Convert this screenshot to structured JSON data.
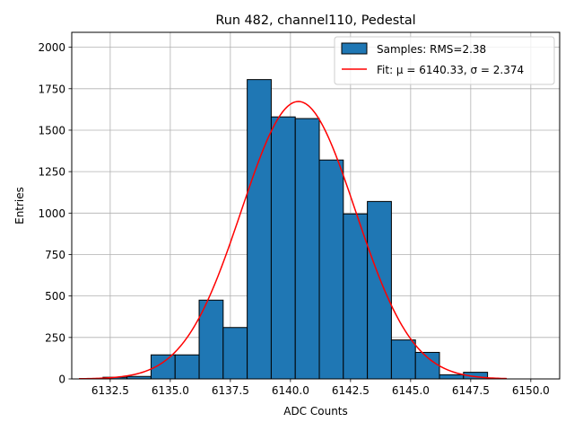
{
  "chart_data": {
    "type": "bar",
    "title": "Run 482, channel110, Pedestal",
    "xlabel": "ADC Counts",
    "ylabel": "Entries",
    "xlim": [
      6130.9,
      6151.2
    ],
    "ylim": [
      0,
      2090
    ],
    "xticks": [
      6132.5,
      6135.0,
      6137.5,
      6140.0,
      6142.5,
      6145.0,
      6147.5,
      6150.0
    ],
    "xtick_labels": [
      "6132.5",
      "6135.0",
      "6137.5",
      "6140.0",
      "6142.5",
      "6145.0",
      "6147.5",
      "6150.0"
    ],
    "yticks": [
      0,
      250,
      500,
      750,
      1000,
      1250,
      1500,
      1750,
      2000
    ],
    "ytick_labels": [
      "0",
      "250",
      "500",
      "750",
      "1000",
      "1250",
      "1500",
      "1750",
      "2000"
    ],
    "grid": true,
    "legend_position": "top-right",
    "histogram": {
      "name": "Samples: RMS=2.38",
      "color": "#1f77b4",
      "edge_color": "#000000",
      "bins": [
        {
          "x0": 6132.2,
          "x1": 6133.2,
          "count": 10
        },
        {
          "x0": 6133.2,
          "x1": 6134.2,
          "count": 15
        },
        {
          "x0": 6134.2,
          "x1": 6135.2,
          "count": 145
        },
        {
          "x0": 6135.2,
          "x1": 6136.2,
          "count": 145
        },
        {
          "x0": 6136.2,
          "x1": 6137.2,
          "count": 475
        },
        {
          "x0": 6137.2,
          "x1": 6138.2,
          "count": 310
        },
        {
          "x0": 6138.2,
          "x1": 6139.2,
          "count": 1805
        },
        {
          "x0": 6139.2,
          "x1": 6140.2,
          "count": 1580
        },
        {
          "x0": 6140.2,
          "x1": 6141.2,
          "count": 1570
        },
        {
          "x0": 6141.2,
          "x1": 6142.2,
          "count": 1320
        },
        {
          "x0": 6142.2,
          "x1": 6143.2,
          "count": 995
        },
        {
          "x0": 6143.2,
          "x1": 6144.2,
          "count": 1070
        },
        {
          "x0": 6144.2,
          "x1": 6145.2,
          "count": 235
        },
        {
          "x0": 6145.2,
          "x1": 6146.2,
          "count": 160
        },
        {
          "x0": 6146.2,
          "x1": 6147.2,
          "count": 25
        },
        {
          "x0": 6147.2,
          "x1": 6148.2,
          "count": 40
        }
      ]
    },
    "fit": {
      "name": "Fit: μ = 6140.33, σ = 2.374",
      "color": "#ff0000",
      "mu": 6140.33,
      "sigma": 2.374,
      "amplitude": 1673,
      "x_range": [
        6131.2,
        6149.0
      ]
    }
  }
}
